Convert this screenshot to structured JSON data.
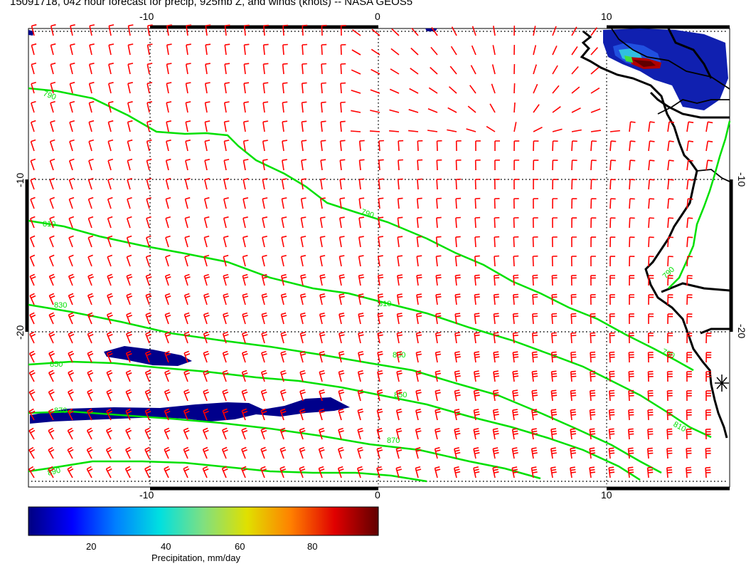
{
  "title": "15091718, 042 hour forecast for precip, 925mb Z, and winds (knots) -- NASA GEOS5",
  "map": {
    "lon_ticks_bottom": [
      "-10",
      "0",
      "10"
    ],
    "lon_ticks_top": [
      "-10",
      "0",
      "10"
    ],
    "lat_ticks_left": [
      "-10",
      "-20"
    ],
    "lat_ticks_right": [
      "-10",
      "-20"
    ],
    "contour_labels": [
      "790",
      "810",
      "830",
      "850",
      "870",
      "890"
    ],
    "colors": {
      "wind_barbs": "#ff0000",
      "height_contours": "#00e000",
      "coastline": "#000000",
      "grid": "#000000",
      "precip_low": "#00008b"
    }
  },
  "colorbar": {
    "label": "Precipitation, mm/day",
    "ticks": [
      "20",
      "40",
      "60",
      "80"
    ],
    "stops": [
      "#000080",
      "#0000ff",
      "#0080ff",
      "#00e0e0",
      "#80e080",
      "#e0e000",
      "#ff8000",
      "#e00000",
      "#600000"
    ]
  }
}
